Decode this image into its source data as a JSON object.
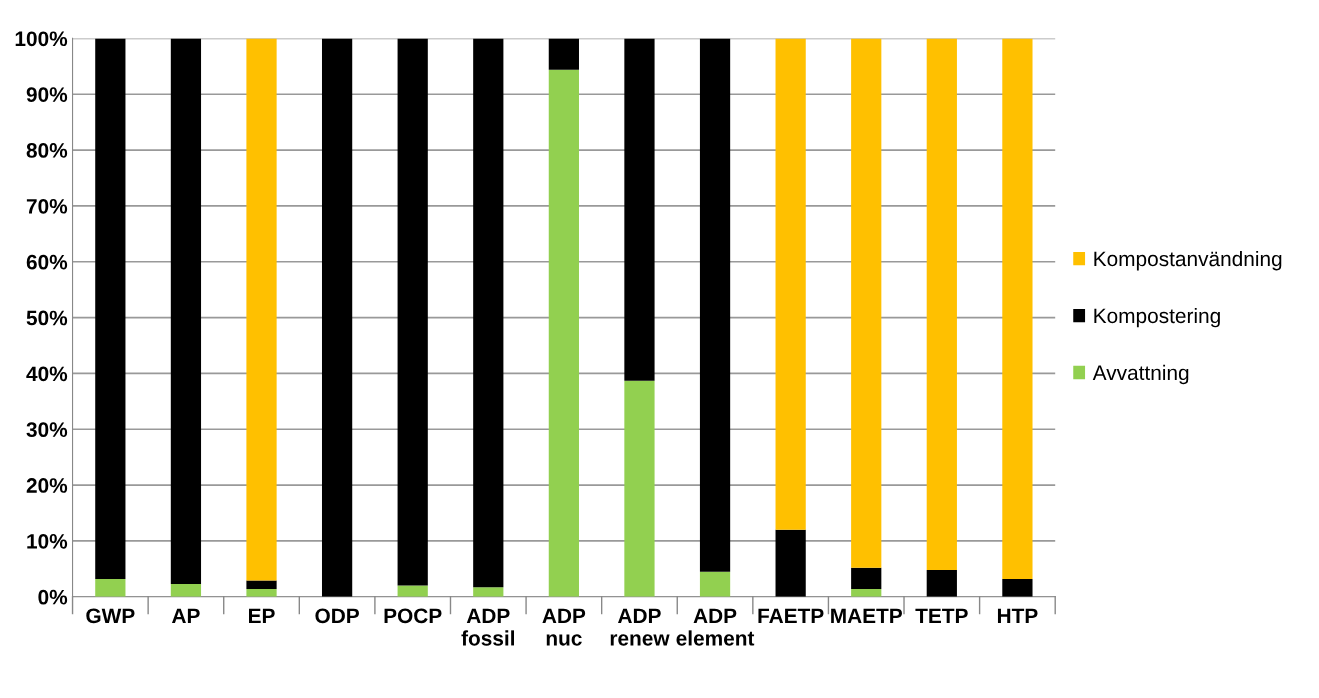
{
  "chart_data": {
    "type": "bar",
    "stacked": true,
    "categories": [
      "GWP",
      "AP",
      "EP",
      "ODP",
      "POCP",
      "ADP\nfossil",
      "ADP\nnuc",
      "ADP\nrenew",
      "ADP\nelement",
      "FAETP",
      "MAETP",
      "TETP",
      "HTP"
    ],
    "series": [
      {
        "name": "Avvattning",
        "color": "#92d050",
        "values": [
          3.2,
          2.3,
          1.4,
          0,
          2.0,
          1.7,
          94.4,
          38.7,
          4.5,
          0,
          1.4,
          0,
          0
        ]
      },
      {
        "name": "Kompostering",
        "color": "#000000",
        "values": [
          96.8,
          97.7,
          1.5,
          100,
          98.0,
          98.3,
          5.6,
          61.3,
          95.5,
          12.0,
          3.8,
          4.8,
          3.2
        ]
      },
      {
        "name": "Kompostanvändning",
        "color": "#ffc000",
        "values": [
          0,
          0,
          97.1,
          0,
          0,
          0,
          0,
          0,
          0,
          88.0,
          94.8,
          95.2,
          96.8
        ]
      }
    ],
    "ylim": [
      0,
      100
    ],
    "yticks": [
      {
        "value": 0,
        "label": "0%"
      },
      {
        "value": 10,
        "label": "10%"
      },
      {
        "value": 20,
        "label": "20%"
      },
      {
        "value": 30,
        "label": "30%"
      },
      {
        "value": 40,
        "label": "40%"
      },
      {
        "value": 50,
        "label": "50%"
      },
      {
        "value": 60,
        "label": "60%"
      },
      {
        "value": 70,
        "label": "70%"
      },
      {
        "value": 80,
        "label": "80%"
      },
      {
        "value": 90,
        "label": "90%"
      },
      {
        "value": 100,
        "label": "100%"
      }
    ],
    "grid": "y",
    "legend": "right"
  }
}
